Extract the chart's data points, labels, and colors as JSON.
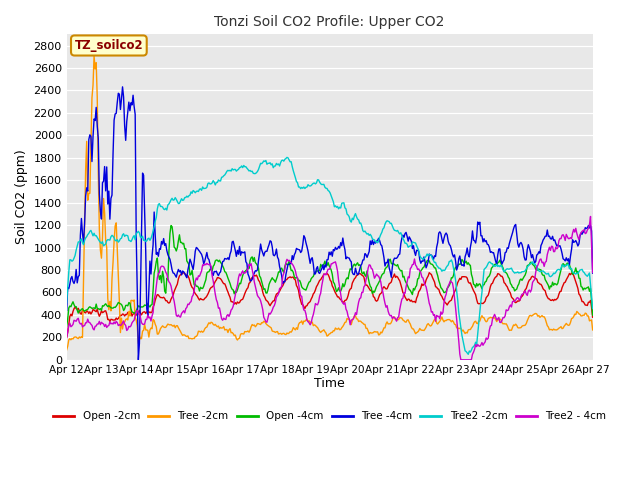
{
  "title": "Tonzi Soil CO2 Profile: Upper CO2",
  "xlabel": "Time",
  "ylabel": "Soil CO2 (ppm)",
  "ylim": [
    0,
    2900
  ],
  "yticks": [
    0,
    200,
    400,
    600,
    800,
    1000,
    1200,
    1400,
    1600,
    1800,
    2000,
    2200,
    2400,
    2600,
    2800
  ],
  "annotation_text": "TZ_soilco2",
  "fig_bg": "#ffffff",
  "plot_bg": "#e8e8e8",
  "grid_color": "#ffffff",
  "series_colors": {
    "Open -2cm": "#dd0000",
    "Tree -2cm": "#ff9900",
    "Open -4cm": "#00bb00",
    "Tree -4cm": "#0000dd",
    "Tree2 -2cm": "#00cccc",
    "Tree2 - 4cm": "#cc00cc"
  },
  "x_tick_labels": [
    "Apr 12",
    "Apr 13",
    "Apr 14",
    "Apr 15",
    "Apr 16",
    "Apr 17",
    "Apr 18",
    "Apr 19",
    "Apr 20",
    "Apr 21",
    "Apr 22",
    "Apr 23",
    "Apr 24",
    "Apr 25",
    "Apr 26",
    "Apr 27"
  ],
  "legend_labels": [
    "Open -2cm",
    "Tree -2cm",
    "Open -4cm",
    "Tree -4cm",
    "Tree2 -2cm",
    "Tree2 - 4cm"
  ],
  "n_points": 500
}
